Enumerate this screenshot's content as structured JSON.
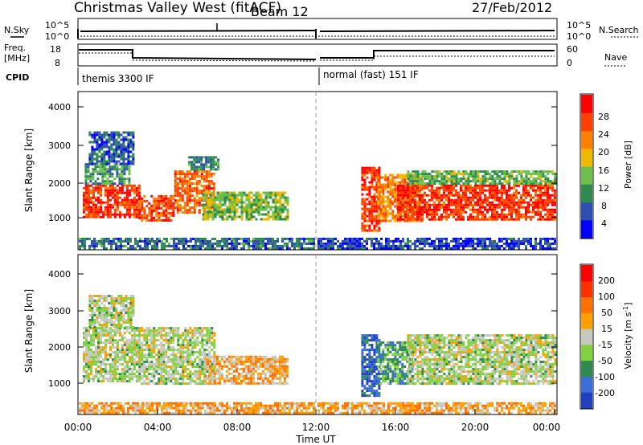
{
  "header": {
    "title": "Christmas Valley West (fitACF)",
    "beam": "Beam 12",
    "date": "27/Feb/2012"
  },
  "top_panels": {
    "nsky_label": "N.Sky",
    "nsky_ticks": [
      "10^5",
      "10^0"
    ],
    "nsearch_label": "N.Search",
    "nsearch_ticks": [
      "10^5",
      "10^0"
    ],
    "freq_label": "Freq.",
    "freq_unit": "[MHz]",
    "freq_ticks": [
      "18",
      "8"
    ],
    "nave_label": "Nave",
    "nave_ticks": [
      "60",
      "0"
    ],
    "cpid_label": "CPID",
    "cpid_modes": [
      "themis 3300 IF",
      "normal (fast) 151 IF"
    ]
  },
  "chart_data": [
    {
      "type": "heatmap",
      "name": "power",
      "ylabel": "Slant Range [km]",
      "yticks": [
        "4000",
        "3000",
        "2000",
        "1000"
      ],
      "ylim": [
        180,
        4600
      ],
      "xlim": [
        0,
        24
      ],
      "colorbar_label": "Power [dB]",
      "colorbar_ticks": [
        "28",
        "24",
        "20",
        "16",
        "12",
        "8",
        "4"
      ],
      "colors": [
        "#0000ff",
        "#2e4fb0",
        "#2e8a4e",
        "#6cbf4a",
        "#f0b800",
        "#ff8000",
        "#ff4000",
        "#ff0000"
      ],
      "regions": [
        {
          "x0": 0.2,
          "x1": 3.0,
          "y0": 1100,
          "y1": 2000,
          "level": 0.85
        },
        {
          "x0": 0.3,
          "x1": 2.5,
          "y0": 2000,
          "y1": 2600,
          "level": 0.35
        },
        {
          "x0": 0.5,
          "x1": 2.8,
          "y0": 2600,
          "y1": 3500,
          "level": 0.2
        },
        {
          "x0": 3.0,
          "x1": 4.8,
          "y0": 1000,
          "y1": 1700,
          "level": 0.8
        },
        {
          "x0": 4.8,
          "x1": 6.8,
          "y0": 1200,
          "y1": 2400,
          "level": 0.75
        },
        {
          "x0": 5.5,
          "x1": 7.0,
          "y0": 2400,
          "y1": 2800,
          "level": 0.3
        },
        {
          "x0": 6.2,
          "x1": 10.5,
          "y0": 1000,
          "y1": 1800,
          "level": 0.45
        },
        {
          "x0": 14.2,
          "x1": 15.1,
          "y0": 700,
          "y1": 2500,
          "level": 0.85
        },
        {
          "x0": 15.0,
          "x1": 17.2,
          "y0": 1000,
          "y1": 2300,
          "level": 0.7
        },
        {
          "x0": 16.0,
          "x1": 24.0,
          "y0": 1000,
          "y1": 2000,
          "level": 0.85
        },
        {
          "x0": 16.5,
          "x1": 24.0,
          "y0": 2000,
          "y1": 2400,
          "level": 0.4
        },
        {
          "x0": 0.0,
          "x1": 11.8,
          "y0": 200,
          "y1": 500,
          "level": 0.25
        },
        {
          "x0": 12.0,
          "x1": 24.0,
          "y0": 200,
          "y1": 500,
          "level": 0.15
        }
      ]
    },
    {
      "type": "heatmap",
      "name": "velocity",
      "ylabel": "Slant Range [km]",
      "yticks": [
        "4000",
        "3000",
        "2000",
        "1000"
      ],
      "ylim": [
        180,
        4600
      ],
      "xlim": [
        0,
        24
      ],
      "xlabel": "Time UT",
      "xticks": [
        "00:00",
        "04:00",
        "08:00",
        "12:00",
        "16:00",
        "20:00",
        "00:00"
      ],
      "colorbar_label": "Velocity [m s",
      "colorbar_label_sup": "-1",
      "colorbar_label_end": "]",
      "colorbar_ticks": [
        "200",
        "100",
        "50",
        "15",
        "-15",
        "-50",
        "-100",
        "-200"
      ],
      "colors": [
        "#2040c0",
        "#3a6fd8",
        "#2e8a4e",
        "#80d040",
        "#c8c8c0",
        "#ffa000",
        "#ff7000",
        "#ff3000",
        "#ff0000"
      ],
      "regions": [
        {
          "x0": 0.2,
          "x1": 3.0,
          "y0": 1100,
          "y1": 2600,
          "level": 0.45
        },
        {
          "x0": 0.5,
          "x1": 2.8,
          "y0": 2600,
          "y1": 3500,
          "level": 0.45
        },
        {
          "x0": 3.0,
          "x1": 6.8,
          "y0": 1000,
          "y1": 2600,
          "level": 0.45
        },
        {
          "x0": 6.3,
          "x1": 10.5,
          "y0": 1000,
          "y1": 1800,
          "level": 0.6
        },
        {
          "x0": 14.2,
          "x1": 15.1,
          "y0": 700,
          "y1": 2400,
          "level": 0.15
        },
        {
          "x0": 15.0,
          "x1": 16.8,
          "y0": 1000,
          "y1": 2200,
          "level": 0.3
        },
        {
          "x0": 16.5,
          "x1": 24.0,
          "y0": 1000,
          "y1": 2400,
          "level": 0.45
        },
        {
          "x0": 0.0,
          "x1": 11.8,
          "y0": 200,
          "y1": 500,
          "level": 0.62
        },
        {
          "x0": 12.0,
          "x1": 24.0,
          "y0": 200,
          "y1": 500,
          "level": 0.62
        }
      ]
    }
  ]
}
